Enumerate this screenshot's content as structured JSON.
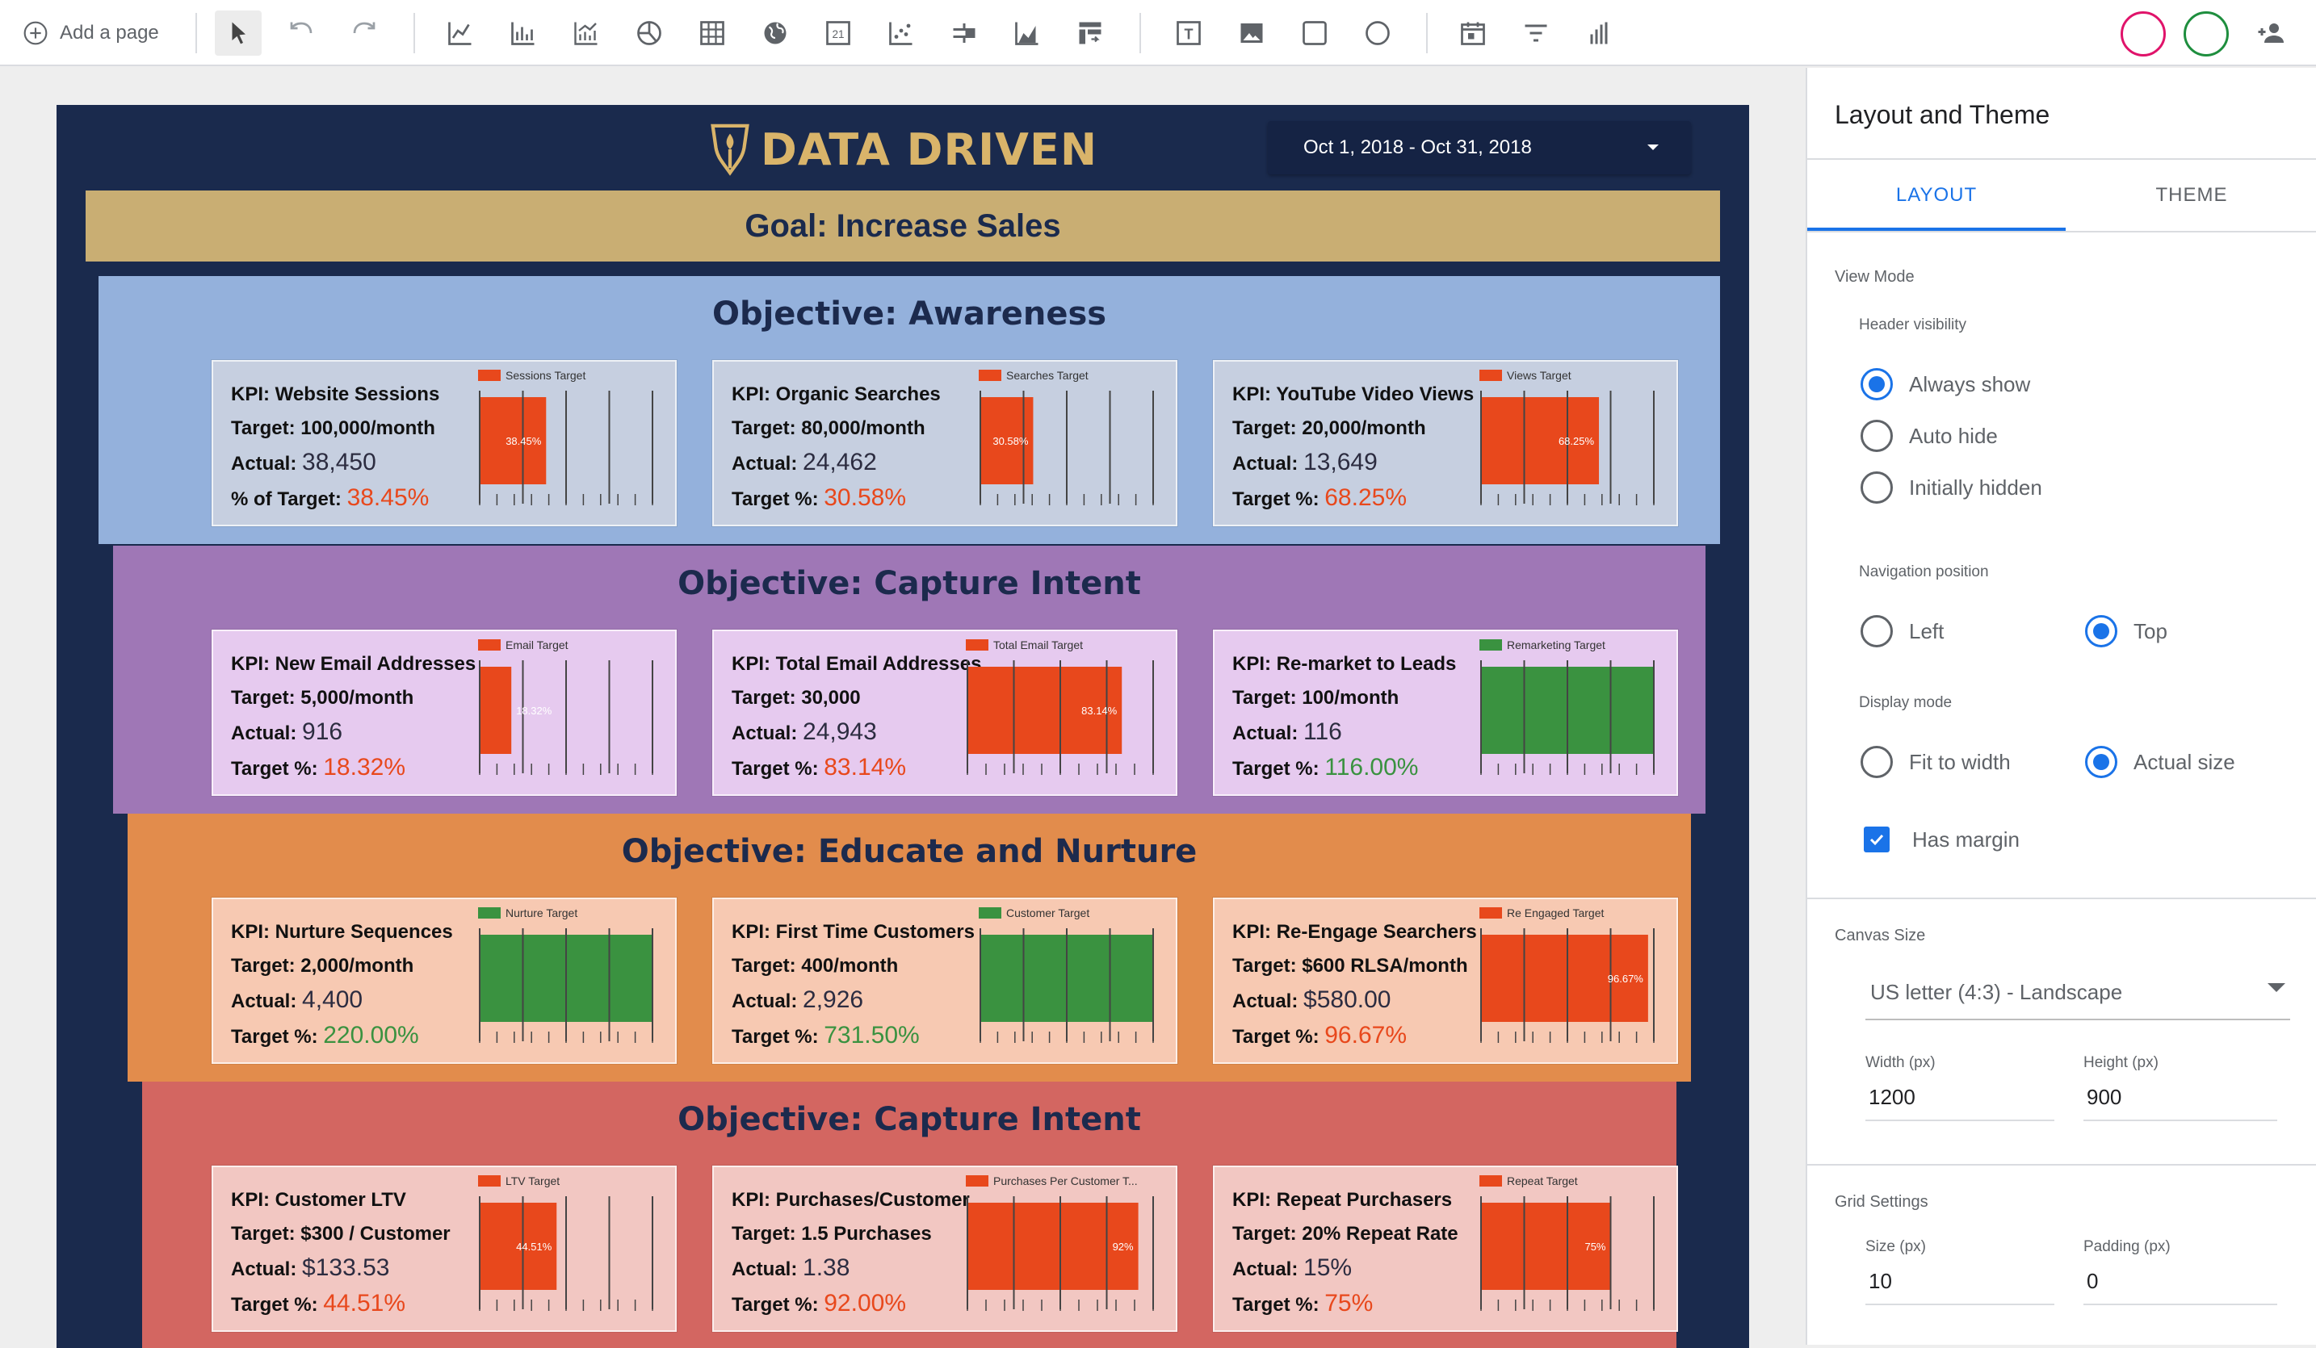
{
  "toolbar": {
    "add_page_label": "Add a page",
    "tools": [
      "select-icon",
      "undo-icon",
      "redo-icon",
      "time-series-icon",
      "bar-chart-icon",
      "combo-chart-icon",
      "pie-chart-icon",
      "table-icon",
      "geo-map-icon",
      "scorecard-icon",
      "scatter-chart-icon",
      "bullet-chart-icon",
      "area-chart-icon",
      "pivot-table-icon",
      "text-icon",
      "image-icon",
      "rectangle-icon",
      "circle-icon",
      "date-range-icon",
      "filter-icon",
      "data-control-icon"
    ],
    "scorecard_glyph": "21",
    "text_glyph": "T"
  },
  "report": {
    "logo_text": "DATA DRIVEN",
    "date_range": "Oct 1, 2018 - Oct 31, 2018",
    "goal": "Goal: Increase Sales",
    "colors": {
      "background": "#1a2a4d",
      "goal": "#c9ae73",
      "bar_red": "#e8481c",
      "bar_green": "#3a9240"
    },
    "objectives": [
      {
        "title": "Objective: Awareness",
        "bg": "#94b1dc",
        "card_bg": "#c6cfe0",
        "kpis": [
          {
            "kpi": "KPI: Website Sessions",
            "target": "Target: 100,000/month",
            "actual_label": "Actual:",
            "actual": "38,450",
            "pct_label": "% of Target:",
            "pct": "38.45%",
            "legend": "Sessions Target",
            "value": 38.45,
            "bar_label": "38.45%"
          },
          {
            "kpi": "KPI: Organic Searches",
            "target": "Target: 80,000/month",
            "actual_label": "Actual:",
            "actual": "24,462",
            "pct_label": "Target %:",
            "pct": "30.58%",
            "legend": "Searches Target",
            "value": 30.58,
            "bar_label": "30.58%"
          },
          {
            "kpi": "KPI: YouTube Video Views",
            "target": "Target: 20,000/month",
            "actual_label": "Actual:",
            "actual": "13,649",
            "pct_label": "Target %:",
            "pct": "68.25%",
            "legend": "Views Target",
            "value": 68.25,
            "bar_label": "68.25%"
          }
        ]
      },
      {
        "title": "Objective: Capture Intent",
        "bg": "#9f77b6",
        "card_bg": "#e6caef",
        "kpis": [
          {
            "kpi": "KPI: New Email Addresses",
            "target": "Target: 5,000/month",
            "actual_label": "Actual:",
            "actual": "916",
            "pct_label": "Target %:",
            "pct": "18.32%",
            "legend": "Email Target",
            "value": 18.32,
            "bar_label": "18.32%"
          },
          {
            "kpi": "KPI: Total Email Addresses",
            "target": "Target: 30,000",
            "actual_label": "Actual:",
            "actual": "24,943",
            "pct_label": "Target %:",
            "pct": "83.14%",
            "legend": "Total Email Target",
            "value": 83.14,
            "bar_label": "83.14%"
          },
          {
            "kpi": "KPI: Re-market to Leads",
            "target": "Target: 100/month",
            "actual_label": "Actual:",
            "actual": "116",
            "pct_label": "Target %:",
            "pct": "116.00%",
            "legend": "Remarketing Target",
            "value": 116,
            "bar_label": ""
          }
        ]
      },
      {
        "title": "Objective: Educate and Nurture",
        "bg": "#e28c4c",
        "card_bg": "#f7c9b2",
        "kpis": [
          {
            "kpi": "KPI: Nurture Sequences",
            "target": "Target: 2,000/month",
            "actual_label": "Actual:",
            "actual": "4,400",
            "pct_label": "Target %:",
            "pct": "220.00%",
            "legend": "Nurture Target",
            "value": 220,
            "bar_label": ""
          },
          {
            "kpi": "KPI: First Time Customers",
            "target": "Target: 400/month",
            "actual_label": "Actual:",
            "actual": "2,926",
            "pct_label": "Target %:",
            "pct": "731.50%",
            "legend": "Customer Target",
            "value": 731.5,
            "bar_label": ""
          },
          {
            "kpi": "KPI: Re-Engage Searchers",
            "target": "Target: $600 RLSA/month",
            "actual_label": "Actual:",
            "actual": "$580.00",
            "pct_label": "Target %:",
            "pct": "96.67%",
            "legend": "Re Engaged Target",
            "value": 96.67,
            "bar_label": "96.67%"
          }
        ]
      },
      {
        "title": "Objective: Capture Intent",
        "bg": "#d36661",
        "card_bg": "#f2c7c2",
        "kpis": [
          {
            "kpi": "KPI: Customer LTV",
            "target": "Target: $300 / Customer",
            "actual_label": "Actual:",
            "actual": "$133.53",
            "pct_label": "Target %:",
            "pct": "44.51%",
            "legend": "LTV Target",
            "value": 44.51,
            "bar_label": "44.51%"
          },
          {
            "kpi": "KPI: Purchases/Customer",
            "target": "Target: 1.5 Purchases",
            "actual_label": "Actual:",
            "actual": "1.38",
            "pct_label": "Target %:",
            "pct": "92.00%",
            "legend": "Purchases Per Customer T...",
            "value": 92,
            "bar_label": "92%"
          },
          {
            "kpi": "KPI: Repeat Purchasers",
            "target": "Target: 20% Repeat Rate",
            "actual_label": "Actual:",
            "actual": "15%",
            "pct_label": "Target %:",
            "pct": "75%",
            "legend": "Repeat Target",
            "value": 75,
            "bar_label": "75%"
          }
        ]
      }
    ]
  },
  "panel": {
    "title": "Layout and Theme",
    "tabs": [
      "LAYOUT",
      "THEME"
    ],
    "view_mode": "View Mode",
    "header_visibility": "Header visibility",
    "header_options": [
      "Always show",
      "Auto hide",
      "Initially hidden"
    ],
    "header_selected": 0,
    "navigation_position": "Navigation position",
    "nav_options": [
      "Left",
      "Top"
    ],
    "nav_selected": 1,
    "display_mode": "Display mode",
    "display_options": [
      "Fit to width",
      "Actual size"
    ],
    "display_selected": 1,
    "has_margin": "Has margin",
    "canvas_size": "Canvas Size",
    "canvas_size_value": "US letter (4:3) - Landscape",
    "width_label": "Width (px)",
    "width_value": "1200",
    "height_label": "Height (px)",
    "height_value": "900",
    "grid_settings": "Grid Settings",
    "size_label": "Size (px)",
    "size_value": "10",
    "padding_label": "Padding (px)",
    "padding_value": "0"
  }
}
